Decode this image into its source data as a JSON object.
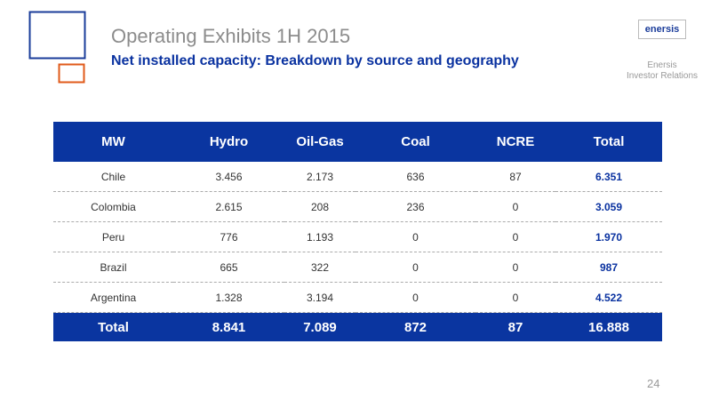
{
  "header": {
    "title": "Operating Exhibits 1H 2015",
    "subtitle": "Net installed capacity: Breakdown by source and geography"
  },
  "logo": {
    "text": "enersis",
    "caption": [
      "Enersis",
      "Investor Relations"
    ]
  },
  "table": {
    "columns": [
      "MW",
      "Hydro",
      "Oil-Gas",
      "Coal",
      "NCRE",
      "Total"
    ],
    "rows": [
      [
        "Chile",
        "3.456",
        "2.173",
        "636",
        "87",
        "6.351"
      ],
      [
        "Colombia",
        "2.615",
        "208",
        "236",
        "0",
        "3.059"
      ],
      [
        "Peru",
        "776",
        "1.193",
        "0",
        "0",
        "1.970"
      ],
      [
        "Brazil",
        "665",
        "322",
        "0",
        "0",
        "987"
      ],
      [
        "Argentina",
        "1.328",
        "3.194",
        "0",
        "0",
        "4.522"
      ]
    ],
    "total_row": [
      "Total",
      "8.841",
      "7.089",
      "872",
      "87",
      "16.888"
    ]
  },
  "page_number": "24"
}
